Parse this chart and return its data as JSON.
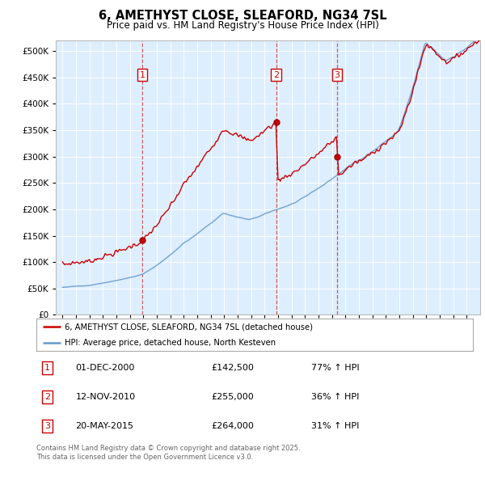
{
  "title_line1": "6, AMETHYST CLOSE, SLEAFORD, NG34 7SL",
  "title_line2": "Price paid vs. HM Land Registry's House Price Index (HPI)",
  "plot_bg_color": "#ddeeff",
  "red_line_label": "6, AMETHYST CLOSE, SLEAFORD, NG34 7SL (detached house)",
  "blue_line_label": "HPI: Average price, detached house, North Kesteven",
  "transactions": [
    {
      "num": "1",
      "date": "01-DEC-2000",
      "price": "£142,500",
      "hpi": "77% ↑ HPI",
      "year": 2000.92
    },
    {
      "num": "2",
      "date": "12-NOV-2010",
      "price": "£255,000",
      "hpi": "36% ↑ HPI",
      "year": 2010.87
    },
    {
      "num": "3",
      "date": "20-MAY-2015",
      "price": "£264,000",
      "hpi": "31% ↑ HPI",
      "year": 2015.38
    }
  ],
  "sale_prices": [
    142500,
    255000,
    264000
  ],
  "sale_years": [
    2000.92,
    2010.87,
    2015.38
  ],
  "footer_line1": "Contains HM Land Registry data © Crown copyright and database right 2025.",
  "footer_line2": "This data is licensed under the Open Government Licence v3.0.",
  "yticks": [
    0,
    50000,
    100000,
    150000,
    200000,
    250000,
    300000,
    350000,
    400000,
    450000,
    500000
  ],
  "ylim_max": 520000,
  "xlim_start": 1994.5,
  "xlim_end": 2026.0,
  "hpi_seed": 42,
  "red_seed": 7
}
